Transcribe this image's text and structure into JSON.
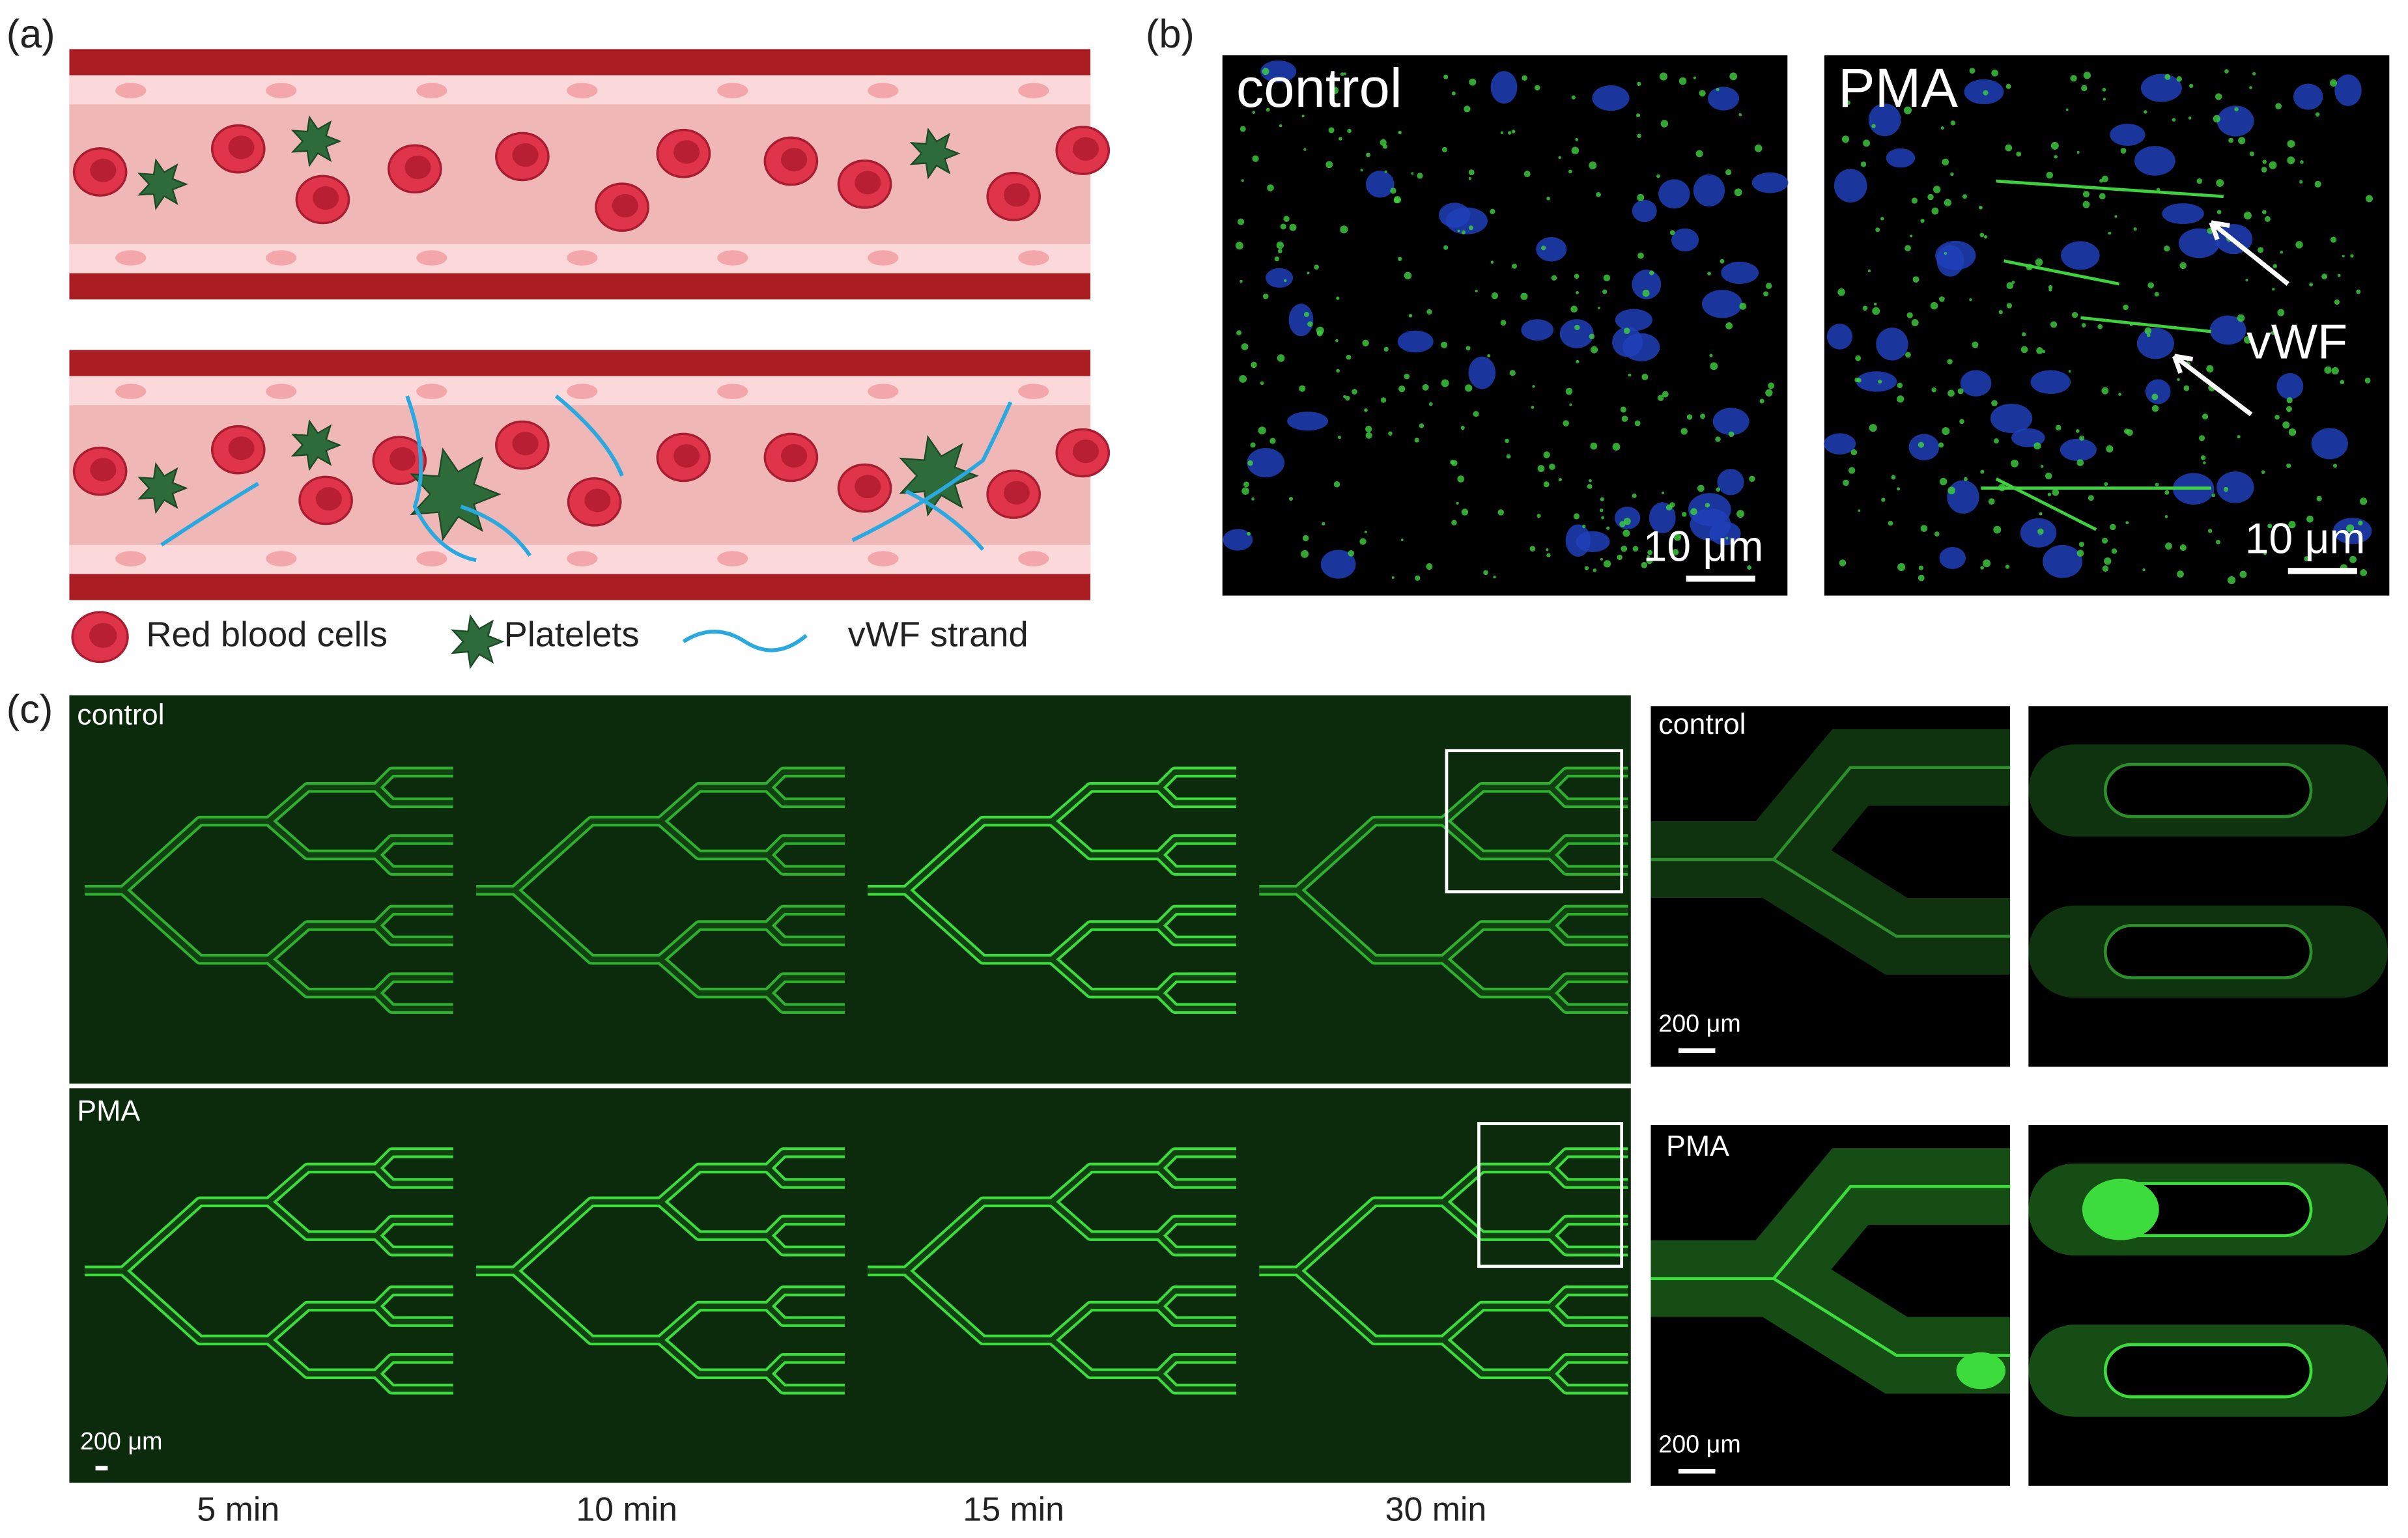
{
  "panel_a": {
    "label": "(a)",
    "legend": {
      "rbc": "Red blood cells",
      "platelets": "Platelets",
      "vwf": "vWF strand"
    }
  },
  "panel_b": {
    "label": "(b)",
    "control": {
      "title": "control",
      "scale": "10 μm"
    },
    "pma": {
      "title": "PMA",
      "annotation": "vWF",
      "scale": "10 μm"
    }
  },
  "panel_c": {
    "label": "(c)",
    "main": {
      "control": "control",
      "pma": "PMA",
      "scale": "200 μm",
      "times": [
        "5 min",
        "10 min",
        "15 min",
        "30 min"
      ]
    },
    "zoom": {
      "control": "control",
      "control_scale": "200 μm",
      "pma": "PMA",
      "pma_scale": "200 μm"
    }
  }
}
